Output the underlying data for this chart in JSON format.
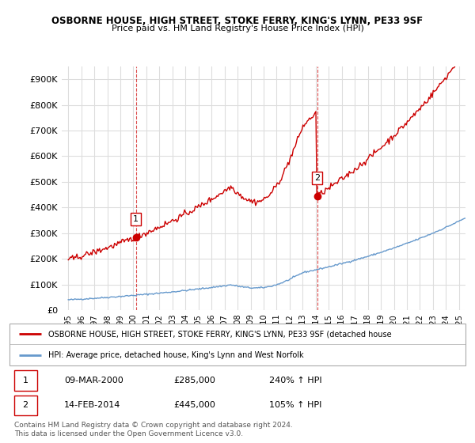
{
  "title": "OSBORNE HOUSE, HIGH STREET, STOKE FERRY, KING'S LYNN, PE33 9SF",
  "subtitle": "Price paid vs. HM Land Registry's House Price Index (HPI)",
  "background_color": "#ffffff",
  "grid_color": "#dddddd",
  "red_line_color": "#cc0000",
  "blue_line_color": "#6699cc",
  "sale1_date_num": 2000.19,
  "sale1_price": 285000,
  "sale1_label": "1",
  "sale2_date_num": 2014.12,
  "sale2_price": 445000,
  "sale2_label": "2",
  "ylim_min": 0,
  "ylim_max": 950000,
  "legend_red": "OSBORNE HOUSE, HIGH STREET, STOKE FERRY, KING'S LYNN, PE33 9SF (detached house",
  "legend_blue": "HPI: Average price, detached house, King's Lynn and West Norfolk",
  "table_row1": [
    "1",
    "09-MAR-2000",
    "£285,000",
    "240% ↑ HPI"
  ],
  "table_row2": [
    "2",
    "14-FEB-2014",
    "£445,000",
    "105% ↑ HPI"
  ],
  "footer": "Contains HM Land Registry data © Crown copyright and database right 2024.\nThis data is licensed under the Open Government Licence v3.0."
}
